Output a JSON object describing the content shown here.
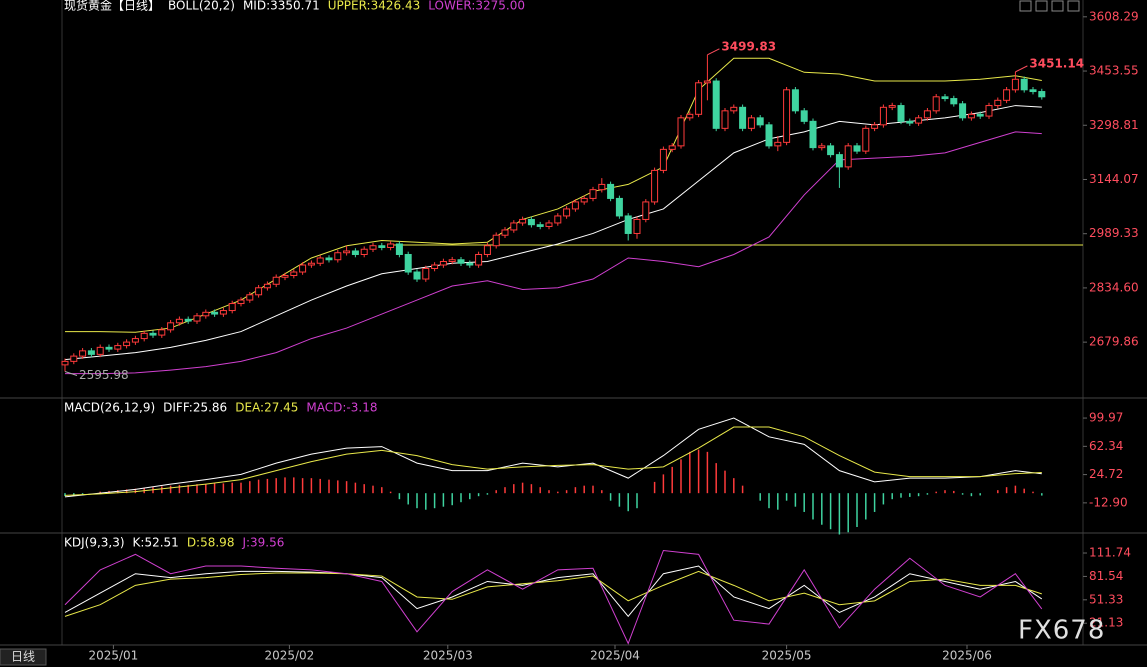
{
  "header": {
    "title": "现货黄金【日线】",
    "period_tab": "日线",
    "watermark": "FX678"
  },
  "x_axis": {
    "ticks": [
      {
        "value": 5.5,
        "label": "2025/01"
      },
      {
        "value": 25.5,
        "label": "2025/02"
      },
      {
        "value": 43.5,
        "label": "2025/03"
      },
      {
        "value": 62.5,
        "label": "2025/04"
      },
      {
        "value": 82,
        "label": "2025/05"
      },
      {
        "value": 102.5,
        "label": "2025/06"
      }
    ]
  },
  "chart_data": [
    {
      "type": "candlestick",
      "indicator": "BOLL(20,2)",
      "up_color": "#ff3b3b",
      "down_color": "#3fd4a0",
      "open": [
        2615,
        2625,
        2640,
        2655,
        2645,
        2665,
        2660,
        2670,
        2680,
        2690,
        2705,
        2700,
        2715,
        2735,
        2745,
        2740,
        2755,
        2765,
        2760,
        2770,
        2790,
        2800,
        2815,
        2835,
        2845,
        2865,
        2870,
        2880,
        2900,
        2905,
        2920,
        2915,
        2935,
        2940,
        2930,
        2945,
        2955,
        2950,
        2960,
        2930,
        2880,
        2860,
        2890,
        2900,
        2910,
        2915,
        2905,
        2900,
        2930,
        2955,
        2985,
        3000,
        3020,
        3030,
        3015,
        3010,
        3020,
        3040,
        3060,
        3080,
        3090,
        3115,
        3130,
        3090,
        3040,
        2990,
        3030,
        3080,
        3170,
        3230,
        3240,
        3320,
        3330,
        3420,
        3425,
        3290,
        3340,
        3350,
        3290,
        3320,
        3300,
        3240,
        3250,
        3400,
        3340,
        3310,
        3235,
        3240,
        3215,
        3180,
        3240,
        3225,
        3290,
        3300,
        3350,
        3355,
        3310,
        3305,
        3320,
        3340,
        3380,
        3375,
        3360,
        3320,
        3330,
        3325,
        3355,
        3370,
        3400,
        3430,
        3400,
        3395
      ],
      "high": [
        2633,
        2648,
        2663,
        2663,
        2673,
        2673,
        2678,
        2688,
        2698,
        2713,
        2713,
        2723,
        2743,
        2753,
        2753,
        2763,
        2773,
        2773,
        2778,
        2798,
        2808,
        2823,
        2843,
        2853,
        2873,
        2878,
        2888,
        2908,
        2913,
        2928,
        2928,
        2943,
        2955,
        2948,
        2953,
        2963,
        2963,
        2968,
        2968,
        2938,
        2888,
        2898,
        2908,
        2918,
        2923,
        2923,
        2913,
        2938,
        2963,
        2993,
        3008,
        3028,
        3038,
        3038,
        3023,
        3028,
        3048,
        3068,
        3088,
        3098,
        3123,
        3148,
        3138,
        3098,
        3048,
        3038,
        3088,
        3178,
        3238,
        3248,
        3328,
        3338,
        3428,
        3499.83,
        3433,
        3348,
        3358,
        3358,
        3328,
        3328,
        3308,
        3268,
        3408,
        3408,
        3348,
        3318,
        3248,
        3248,
        3223,
        3248,
        3248,
        3298,
        3308,
        3358,
        3363,
        3363,
        3318,
        3328,
        3348,
        3388,
        3388,
        3383,
        3368,
        3338,
        3338,
        3363,
        3378,
        3408,
        3451.14,
        3438,
        3408,
        3403
      ],
      "low": [
        2595.98,
        2617,
        2632,
        2637,
        2637,
        2652,
        2652,
        2662,
        2672,
        2682,
        2692,
        2692,
        2707,
        2727,
        2732,
        2732,
        2747,
        2752,
        2752,
        2762,
        2782,
        2792,
        2807,
        2827,
        2837,
        2857,
        2862,
        2872,
        2892,
        2897,
        2907,
        2907,
        2927,
        2922,
        2922,
        2937,
        2942,
        2942,
        2922,
        2872,
        2852,
        2852,
        2882,
        2892,
        2902,
        2897,
        2892,
        2892,
        2922,
        2947,
        2977,
        2992,
        3012,
        3007,
        3002,
        3002,
        3012,
        3032,
        3052,
        3072,
        3082,
        3107,
        3082,
        3032,
        2970,
        2975,
        3022,
        3072,
        3162,
        3222,
        3232,
        3312,
        3322,
        3370,
        3282,
        3282,
        3332,
        3282,
        3282,
        3292,
        3232,
        3225,
        3242,
        3332,
        3302,
        3227,
        3227,
        3207,
        3120,
        3172,
        3217,
        3217,
        3282,
        3292,
        3342,
        3302,
        3297,
        3297,
        3312,
        3332,
        3367,
        3352,
        3312,
        3312,
        3317,
        3317,
        3347,
        3362,
        3392,
        3392,
        3387,
        3372
      ],
      "close": [
        2625,
        2640,
        2655,
        2645,
        2665,
        2660,
        2670,
        2680,
        2690,
        2705,
        2700,
        2715,
        2735,
        2745,
        2740,
        2755,
        2765,
        2760,
        2770,
        2790,
        2800,
        2815,
        2835,
        2845,
        2865,
        2870,
        2880,
        2900,
        2905,
        2920,
        2915,
        2935,
        2940,
        2930,
        2945,
        2955,
        2950,
        2960,
        2930,
        2880,
        2860,
        2890,
        2900,
        2910,
        2915,
        2905,
        2900,
        2930,
        2955,
        2985,
        3000,
        3020,
        3030,
        3015,
        3010,
        3020,
        3040,
        3060,
        3080,
        3090,
        3115,
        3130,
        3090,
        3040,
        2990,
        3030,
        3080,
        3170,
        3230,
        3240,
        3320,
        3330,
        3420,
        3425,
        3290,
        3340,
        3350,
        3290,
        3320,
        3300,
        3240,
        3250,
        3400,
        3340,
        3310,
        3235,
        3240,
        3215,
        3180,
        3240,
        3225,
        3290,
        3300,
        3350,
        3355,
        3310,
        3305,
        3320,
        3340,
        3380,
        3375,
        3360,
        3320,
        3330,
        3325,
        3355,
        3370,
        3400,
        3430,
        3400,
        3395,
        3380
      ],
      "ylim": [
        2529,
        3642
      ],
      "yticks": [
        3608.29,
        3453.55,
        3298.81,
        3144.07,
        2989.33,
        {
          "value": 2834.6,
          "label": "2834.60"
        },
        2679.86
      ],
      "series": [
        {
          "name": "MID",
          "label": "MID:3350.71",
          "color": "#ffffff",
          "x": [
            0,
            4,
            8,
            12,
            16,
            20,
            24,
            28,
            32,
            36,
            40,
            44,
            48,
            52,
            56,
            60,
            64,
            68,
            72,
            76,
            80,
            84,
            88,
            92,
            96,
            100,
            104,
            108,
            111
          ],
          "values": [
            2630,
            2640,
            2650,
            2665,
            2685,
            2710,
            2755,
            2800,
            2840,
            2875,
            2890,
            2905,
            2910,
            2935,
            2960,
            2990,
            3030,
            3060,
            3140,
            3220,
            3260,
            3280,
            3310,
            3300,
            3310,
            3320,
            3335,
            3355,
            3350.71
          ]
        },
        {
          "name": "UPPER",
          "label": "UPPER:3426.43",
          "color": "#e8e84a",
          "x": [
            0,
            4,
            8,
            12,
            16,
            20,
            24,
            28,
            32,
            36,
            40,
            44,
            48,
            52,
            56,
            60,
            64,
            68,
            72,
            76,
            80,
            84,
            88,
            92,
            96,
            100,
            104,
            108,
            111
          ],
          "values": [
            2710,
            2710,
            2708,
            2720,
            2760,
            2800,
            2860,
            2920,
            2955,
            2970,
            2965,
            2960,
            2965,
            3030,
            3060,
            3110,
            3130,
            3180,
            3400,
            3490,
            3490,
            3450,
            3445,
            3425,
            3425,
            3425,
            3430,
            3440,
            3426.43
          ]
        },
        {
          "name": "LOWER",
          "label": "LOWER:3275.00",
          "color": "#d040d0",
          "x": [
            0,
            4,
            8,
            12,
            16,
            20,
            24,
            28,
            32,
            36,
            40,
            44,
            48,
            52,
            56,
            60,
            64,
            68,
            72,
            76,
            80,
            84,
            88,
            92,
            96,
            100,
            104,
            108,
            111
          ],
          "values": [
            2590,
            2590,
            2592,
            2600,
            2610,
            2625,
            2650,
            2690,
            2720,
            2760,
            2800,
            2840,
            2855,
            2830,
            2835,
            2860,
            2920,
            2910,
            2895,
            2930,
            2980,
            3100,
            3200,
            3205,
            3210,
            3220,
            3250,
            3280,
            3275
          ]
        }
      ],
      "reference_line": {
        "value": 2957,
        "from": 37,
        "color": "#e8e84a"
      },
      "annotations": [
        {
          "x": 73,
          "y": 3499.83
        },
        {
          "x": 108,
          "y": 3451.14
        },
        {
          "x": 0,
          "y": 2595.98
        }
      ]
    },
    {
      "type": "macd",
      "indicator": "MACD(26,12,9)",
      "ylim": [
        -53,
        124
      ],
      "yticks": [
        99.97,
        62.34,
        24.72,
        {
          "value": -12.9,
          "label": "-12.90"
        }
      ],
      "series": [
        {
          "name": "DIFF",
          "label": "DIFF:25.86",
          "color": "#ffffff",
          "x": [
            0,
            4,
            8,
            12,
            16,
            20,
            24,
            28,
            32,
            36,
            40,
            44,
            48,
            52,
            56,
            60,
            64,
            68,
            72,
            76,
            80,
            84,
            88,
            92,
            96,
            100,
            104,
            108,
            111
          ],
          "values": [
            -5,
            0,
            5,
            12,
            18,
            25,
            40,
            52,
            60,
            62,
            40,
            30,
            30,
            40,
            35,
            40,
            20,
            50,
            85,
            100,
            75,
            65,
            30,
            15,
            20,
            20,
            22,
            30,
            25.86
          ]
        },
        {
          "name": "DEA",
          "label": "DEA:27.45",
          "color": "#e8e84a",
          "x": [
            0,
            4,
            8,
            12,
            16,
            20,
            24,
            28,
            32,
            36,
            40,
            44,
            48,
            52,
            56,
            60,
            64,
            68,
            72,
            76,
            80,
            84,
            88,
            92,
            96,
            100,
            104,
            108,
            111
          ],
          "values": [
            -3,
            -1,
            2,
            7,
            12,
            18,
            30,
            42,
            52,
            57,
            50,
            38,
            32,
            35,
            37,
            38,
            32,
            35,
            60,
            88,
            88,
            75,
            50,
            28,
            22,
            22,
            22,
            26,
            27.45
          ]
        }
      ],
      "histogram": {
        "name": "MACD",
        "label": "MACD:-3.18",
        "color": "#d040d0",
        "up_color": "#ff3b3b",
        "down_color": "#3fd4a0",
        "values": [
          -4,
          -3,
          -2,
          0,
          2,
          3,
          4,
          5,
          6,
          7,
          8,
          9,
          10,
          11,
          11,
          12,
          12,
          13,
          13,
          14,
          14,
          16,
          18,
          19,
          20,
          21,
          21,
          20,
          20,
          19,
          18,
          17,
          16,
          14,
          12,
          10,
          8,
          2,
          -8,
          -15,
          -20,
          -22,
          -20,
          -18,
          -16,
          -12,
          -8,
          -4,
          -2,
          4,
          8,
          12,
          14,
          12,
          8,
          4,
          2,
          4,
          8,
          10,
          10,
          4,
          -10,
          -18,
          -24,
          -20,
          0,
          15,
          25,
          35,
          45,
          55,
          58,
          55,
          40,
          30,
          20,
          10,
          0,
          -10,
          -20,
          -22,
          -10,
          -18,
          -25,
          -35,
          -42,
          -48,
          -55,
          -52,
          -45,
          -35,
          -25,
          -15,
          -8,
          -6,
          -5,
          -4,
          -2,
          2,
          4,
          3,
          -2,
          -4,
          -3,
          0,
          4,
          8,
          10,
          6,
          2,
          -3.18
        ]
      }
    },
    {
      "type": "line",
      "indicator": "KDJ(9,3,3)",
      "ylim": [
        -7,
        135
      ],
      "yticks": [
        111.74,
        81.54,
        51.33,
        21.13
      ],
      "series": [
        {
          "name": "K",
          "label": "K:52.51",
          "color": "#ffffff",
          "x": [
            0,
            4,
            8,
            12,
            16,
            20,
            24,
            28,
            32,
            36,
            40,
            44,
            48,
            52,
            56,
            60,
            64,
            68,
            72,
            76,
            80,
            84,
            88,
            92,
            96,
            100,
            104,
            108,
            111
          ],
          "values": [
            35,
            60,
            85,
            80,
            85,
            88,
            88,
            87,
            85,
            80,
            40,
            55,
            75,
            70,
            80,
            85,
            30,
            85,
            95,
            55,
            40,
            70,
            35,
            55,
            85,
            75,
            65,
            75,
            52.51
          ]
        },
        {
          "name": "D",
          "label": "D:58.98",
          "color": "#e8e84a",
          "x": [
            0,
            4,
            8,
            12,
            16,
            20,
            24,
            28,
            32,
            36,
            40,
            44,
            48,
            52,
            56,
            60,
            64,
            68,
            72,
            76,
            80,
            84,
            88,
            92,
            96,
            100,
            104,
            108,
            111
          ],
          "values": [
            30,
            45,
            70,
            78,
            80,
            84,
            86,
            86,
            85,
            82,
            55,
            52,
            68,
            72,
            76,
            82,
            50,
            70,
            88,
            70,
            50,
            60,
            45,
            50,
            75,
            78,
            70,
            70,
            58.98
          ]
        },
        {
          "name": "J",
          "label": "J:39.56",
          "color": "#d040d0",
          "x": [
            0,
            4,
            8,
            12,
            16,
            20,
            24,
            28,
            32,
            36,
            40,
            44,
            48,
            52,
            56,
            60,
            64,
            68,
            72,
            76,
            80,
            84,
            88,
            92,
            96,
            100,
            104,
            108,
            111
          ],
          "values": [
            45,
            90,
            110,
            85,
            95,
            95,
            92,
            90,
            85,
            75,
            10,
            62,
            90,
            65,
            90,
            92,
            -5,
            115,
            110,
            25,
            20,
            90,
            15,
            65,
            105,
            70,
            55,
            85,
            39.56
          ]
        }
      ]
    }
  ]
}
